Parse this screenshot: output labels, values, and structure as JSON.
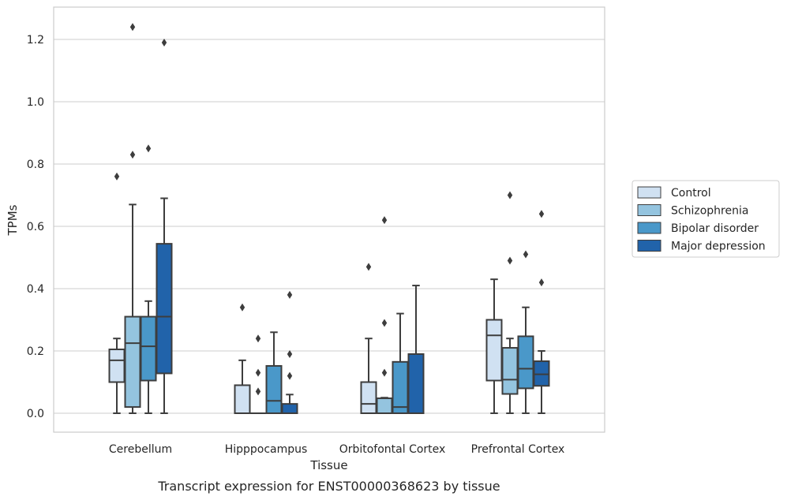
{
  "chart_data": {
    "type": "boxplot",
    "title": "",
    "caption": "Transcript expression for ENST00000368623 by tissue",
    "xlabel": "Tissue",
    "ylabel": "TPMs",
    "ylim": [
      -0.06,
      1.31
    ],
    "yticks": [
      0.0,
      0.2,
      0.4,
      0.6,
      0.8,
      1.0,
      1.2
    ],
    "ytick_labels": [
      "0.0",
      "0.2",
      "0.4",
      "0.6",
      "0.8",
      "1.0",
      "1.2"
    ],
    "grid": "horizontal",
    "legend": "right",
    "categories": [
      "Cerebellum",
      "Hipppocampus",
      "Orbitofontal Cortex",
      "Prefrontal Cortex"
    ],
    "series": [
      {
        "name": "Control",
        "color": "#d0e1f2",
        "boxes": [
          {
            "q1": 0.1,
            "median": 0.17,
            "q3": 0.205,
            "whisker_low": 0.0,
            "whisker_high": 0.24,
            "outliers": [
              0.76
            ]
          },
          {
            "q1": 0.0,
            "median": 0.0,
            "q3": 0.09,
            "whisker_low": 0.0,
            "whisker_high": 0.17,
            "outliers": [
              0.34
            ]
          },
          {
            "q1": 0.0,
            "median": 0.03,
            "q3": 0.1,
            "whisker_low": 0.0,
            "whisker_high": 0.24,
            "outliers": [
              0.47
            ]
          },
          {
            "q1": 0.105,
            "median": 0.25,
            "q3": 0.3,
            "whisker_low": 0.0,
            "whisker_high": 0.43,
            "outliers": []
          }
        ]
      },
      {
        "name": "Schizophrenia",
        "color": "#94c4df",
        "boxes": [
          {
            "q1": 0.02,
            "median": 0.225,
            "q3": 0.31,
            "whisker_low": 0.0,
            "whisker_high": 0.67,
            "outliers": [
              0.83,
              1.24
            ]
          },
          {
            "q1": 0.0,
            "median": 0.0,
            "q3": 0.0,
            "whisker_low": 0.0,
            "whisker_high": 0.0,
            "outliers": [
              0.07,
              0.13,
              0.24
            ]
          },
          {
            "q1": 0.0,
            "median": 0.0,
            "q3": 0.048,
            "whisker_low": 0.0,
            "whisker_high": 0.05,
            "outliers": [
              0.13,
              0.29,
              0.62
            ]
          },
          {
            "q1": 0.062,
            "median": 0.108,
            "q3": 0.21,
            "whisker_low": 0.0,
            "whisker_high": 0.24,
            "outliers": [
              0.49,
              0.7
            ]
          }
        ]
      },
      {
        "name": "Bipolar disorder",
        "color": "#4a98c9",
        "boxes": [
          {
            "q1": 0.105,
            "median": 0.215,
            "q3": 0.31,
            "whisker_low": 0.0,
            "whisker_high": 0.36,
            "outliers": [
              0.85
            ]
          },
          {
            "q1": 0.0,
            "median": 0.04,
            "q3": 0.152,
            "whisker_low": 0.0,
            "whisker_high": 0.26,
            "outliers": []
          },
          {
            "q1": 0.0,
            "median": 0.02,
            "q3": 0.165,
            "whisker_low": 0.0,
            "whisker_high": 0.32,
            "outliers": []
          },
          {
            "q1": 0.08,
            "median": 0.143,
            "q3": 0.247,
            "whisker_low": 0.0,
            "whisker_high": 0.34,
            "outliers": [
              0.51
            ]
          }
        ]
      },
      {
        "name": "Major depression",
        "color": "#2163aa",
        "boxes": [
          {
            "q1": 0.128,
            "median": 0.31,
            "q3": 0.544,
            "whisker_low": 0.0,
            "whisker_high": 0.69,
            "outliers": [
              1.19
            ]
          },
          {
            "q1": 0.0,
            "median": 0.0,
            "q3": 0.03,
            "whisker_low": 0.0,
            "whisker_high": 0.06,
            "outliers": [
              0.12,
              0.19,
              0.38
            ]
          },
          {
            "q1": 0.0,
            "median": 0.0,
            "q3": 0.19,
            "whisker_low": 0.0,
            "whisker_high": 0.41,
            "outliers": []
          },
          {
            "q1": 0.088,
            "median": 0.125,
            "q3": 0.167,
            "whisker_low": 0.0,
            "whisker_high": 0.2,
            "outliers": [
              0.42,
              0.64
            ]
          }
        ]
      }
    ]
  }
}
